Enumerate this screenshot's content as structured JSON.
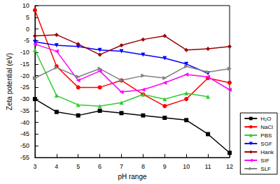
{
  "chart_data": {
    "type": "line",
    "x_label": "pH range",
    "y_label": "Zeta potential (eV)",
    "categories": [
      "3",
      "4",
      "5",
      "6",
      "7",
      "8",
      "9",
      "10",
      "11",
      "12"
    ],
    "ylim": [
      -55,
      10
    ],
    "yticks": [
      -55,
      -50,
      -45,
      -40,
      -35,
      -30,
      -25,
      -20,
      -15,
      -10,
      -5,
      0,
      5,
      10
    ],
    "grid": false,
    "legend": "right",
    "series": [
      {
        "name": "H₂O",
        "color": "#000000",
        "marker": "square",
        "values": [
          -30,
          -35.5,
          -37,
          -35,
          -36,
          -37,
          -38,
          -39,
          -45,
          -53
        ]
      },
      {
        "name": "NaCl",
        "color": "#ff0000",
        "marker": "circle",
        "values": [
          8,
          -16,
          -25,
          -25,
          -22,
          -28,
          -33,
          -30,
          -21,
          -23
        ]
      },
      {
        "name": "PBS",
        "color": "#33cc33",
        "marker": "triangle-up",
        "values": [
          -9,
          -28.5,
          -32.5,
          -33,
          -31.5,
          -28,
          -30,
          -27.5,
          -29,
          null
        ]
      },
      {
        "name": "SGF",
        "color": "#0000ff",
        "marker": "triangle-down",
        "values": [
          -5.5,
          -7,
          -7.5,
          -9,
          -9.5,
          -11,
          -12.5,
          -15,
          -19,
          null
        ]
      },
      {
        "name": "Hank",
        "color": "#990000",
        "marker": "diamond",
        "values": [
          -3,
          -2.5,
          -6.5,
          -11,
          -7,
          -4.5,
          -3,
          -9,
          -8.5,
          -7.5
        ]
      },
      {
        "name": "SIF",
        "color": "#ff00ff",
        "marker": "triangle-left",
        "values": [
          -6.5,
          -9.5,
          -22,
          -18,
          -27,
          -26,
          -23,
          -19.5,
          -20.5,
          -26
        ]
      },
      {
        "name": "SLF",
        "color": "#808080",
        "marker": "triangle-right",
        "values": [
          -21,
          -16.5,
          -20.5,
          -17,
          -22,
          -20,
          -21,
          -16,
          -18.5,
          -17
        ]
      }
    ]
  }
}
